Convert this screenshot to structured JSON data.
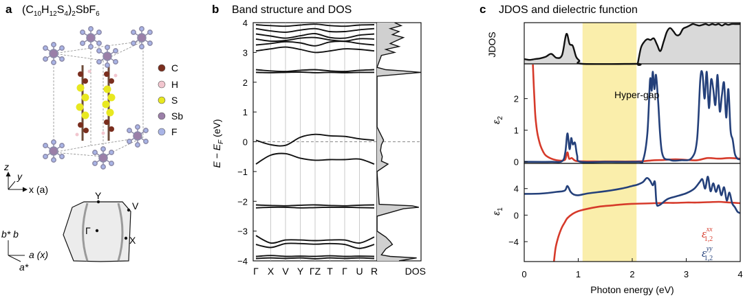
{
  "panel_a": {
    "letter": "a",
    "title": "(C10H12S4)2SbF6",
    "formula_parts": [
      "(C",
      "10",
      "H",
      "12",
      "S",
      "4",
      ")",
      "2",
      "SbF",
      "6"
    ],
    "legend": [
      {
        "label": "C",
        "color": "#7a2e1e"
      },
      {
        "label": "H",
        "color": "#f2c6cf"
      },
      {
        "label": "S",
        "color": "#e8e820"
      },
      {
        "label": "Sb",
        "color": "#9b7fa8"
      },
      {
        "label": "F",
        "color": "#a9b4e6"
      }
    ],
    "axes_top": {
      "z": "z",
      "y": "y",
      "x": "x (a)"
    },
    "axes_bottom": {
      "b": "b* b",
      "a": "a (x)",
      "astar": "a*"
    },
    "bz_points": {
      "Y": "Y",
      "V": "V",
      "Gamma": "Γ",
      "X": "X"
    }
  },
  "panel_b": {
    "letter": "b",
    "title": "Band structure and DOS",
    "ylabel": "E − EF (eV)",
    "ylabel_main": "E − E",
    "ylabel_sub": "F",
    "ylabel_unit": " (eV)",
    "yticks": [
      "4",
      "3",
      "2",
      "1",
      "0",
      "−1",
      "−2",
      "−3",
      "−4"
    ],
    "kpath": [
      "Γ",
      "X",
      "V",
      "Y",
      "ΓZ",
      "T",
      "Γ",
      "U",
      "R"
    ],
    "dos_label": "DOS"
  },
  "panel_c": {
    "letter": "c",
    "title": "JDOS and dielectric function",
    "xlabel": "Photon energy (eV)",
    "xticks": [
      "0",
      "1",
      "2",
      "3",
      "4"
    ],
    "jdos_label": "JDOS",
    "eps2_label": "ε2",
    "eps2_main": "ε",
    "eps2_sub": "2",
    "eps1_label": "ε1",
    "eps1_main": "ε",
    "eps1_sub": "1",
    "eps2_yticks": [
      "2",
      "1",
      "0"
    ],
    "eps1_yticks": [
      "4",
      "0",
      "−4"
    ],
    "annotation": "Hyper-gap",
    "legend": [
      {
        "main": "ε",
        "sup": "xx",
        "sub": "1,2",
        "color": "#d63a2a"
      },
      {
        "main": "ε",
        "sup": "yy",
        "sub": "1,2",
        "color": "#24407a"
      }
    ],
    "colors": {
      "xx": "#d63a2a",
      "yy": "#24407a",
      "hypergap": "#faeeab",
      "jdos_fill": "#d9d9d9"
    }
  },
  "chart_data": [
    {
      "type": "line",
      "panel": "b-band-structure",
      "title": "Band structure and DOS",
      "ylabel": "E − EF (eV)",
      "ylim": [
        -4,
        4
      ],
      "x": [
        "Γ",
        "X",
        "V",
        "Y",
        "ΓZ",
        "T",
        "Γ",
        "U",
        "R"
      ],
      "series": [
        {
          "values": [
            3.93,
            3.9,
            3.88,
            3.92,
            3.95,
            3.9,
            3.88,
            3.92,
            3.93
          ]
        },
        {
          "values": [
            3.8,
            3.72,
            3.68,
            3.75,
            3.8,
            3.7,
            3.7,
            3.76,
            3.8
          ]
        },
        {
          "values": [
            3.62,
            3.55,
            3.48,
            3.56,
            3.63,
            3.5,
            3.48,
            3.58,
            3.62
          ]
        },
        {
          "values": [
            3.45,
            3.38,
            3.4,
            3.48,
            3.5,
            3.42,
            3.38,
            3.46,
            3.45
          ]
        },
        {
          "values": [
            3.25,
            3.3,
            3.36,
            3.32,
            3.22,
            3.35,
            3.37,
            3.3,
            3.25
          ]
        },
        {
          "values": [
            3.05,
            3.12,
            3.18,
            3.1,
            3.0,
            3.05,
            3.12,
            3.1,
            3.05
          ]
        },
        {
          "values": [
            2.42,
            2.38,
            2.36,
            2.4,
            2.42,
            2.38,
            2.36,
            2.4,
            2.42
          ]
        },
        {
          "values": [
            2.33,
            2.32,
            2.33,
            2.34,
            2.32,
            2.33,
            2.32,
            2.33,
            2.33
          ]
        },
        {
          "values": [
            0.05,
            -0.1,
            -0.12,
            0.15,
            0.25,
            0.2,
            0.18,
            0.1,
            0.05
          ]
        },
        {
          "values": [
            -0.75,
            -0.45,
            -0.4,
            -0.55,
            -0.62,
            -0.6,
            -0.6,
            -0.58,
            -0.75
          ]
        },
        {
          "values": [
            -2.12,
            -2.14,
            -2.15,
            -2.13,
            -2.12,
            -2.14,
            -2.15,
            -2.13,
            -2.12
          ]
        },
        {
          "values": [
            -2.22,
            -2.2,
            -2.2,
            -2.22,
            -2.21,
            -2.2,
            -2.2,
            -2.21,
            -2.22
          ]
        },
        {
          "values": [
            -3.15,
            -3.4,
            -3.3,
            -3.3,
            -3.32,
            -3.3,
            -3.3,
            -3.4,
            -3.2
          ]
        },
        {
          "values": [
            -3.45,
            -3.55,
            -3.42,
            -3.42,
            -3.44,
            -3.42,
            -3.45,
            -3.58,
            -3.45
          ]
        },
        {
          "values": [
            -3.85,
            -3.82,
            -3.85,
            -3.84,
            -3.85,
            -3.83,
            -3.85,
            -3.84,
            -3.85
          ]
        },
        {
          "values": [
            -3.92,
            -3.9,
            -3.92,
            -3.9,
            -3.93,
            -3.9,
            -3.92,
            -3.9,
            -3.92
          ]
        }
      ]
    },
    {
      "type": "area",
      "panel": "b-DOS",
      "xlabel": "DOS",
      "ylim": [
        -4,
        4
      ],
      "y": [
        -4,
        -3.9,
        -3.85,
        -3.8,
        -3.6,
        -3.45,
        -3.35,
        -3.2,
        -3.1,
        -3.0,
        -2.5,
        -2.25,
        -2.2,
        -2.15,
        -2.1,
        -1.0,
        -0.75,
        -0.65,
        -0.5,
        -0.3,
        -0.1,
        0.05,
        0.2,
        0.35,
        0.5,
        2.2,
        2.33,
        2.38,
        2.42,
        2.5,
        2.9,
        3.0,
        3.1,
        3.2,
        3.3,
        3.4,
        3.5,
        3.6,
        3.7,
        3.8,
        3.9,
        4.0
      ],
      "values": [
        0.5,
        0.9,
        0.3,
        0.1,
        0.2,
        0.35,
        0.3,
        0.2,
        0.1,
        0.0,
        0.0,
        0.6,
        0.95,
        0.8,
        0.05,
        0.0,
        0.25,
        0.1,
        0.12,
        0.08,
        0.1,
        0.15,
        0.1,
        0.05,
        0.0,
        0.0,
        1.0,
        0.6,
        0.2,
        0.0,
        0.1,
        0.4,
        0.2,
        0.5,
        0.3,
        0.45,
        0.6,
        0.35,
        0.5,
        0.3,
        0.55,
        0.4
      ]
    },
    {
      "type": "area",
      "panel": "c-JDOS",
      "title": "JDOS and dielectric function",
      "ylabel": "JDOS",
      "xlim": [
        0,
        4
      ],
      "annotation": "Hyper-gap",
      "hypergap_range": [
        1.08,
        2.08
      ],
      "x": [
        0.0,
        0.1,
        0.2,
        0.3,
        0.4,
        0.5,
        0.6,
        0.7,
        0.78,
        0.84,
        0.9,
        0.96,
        1.02,
        1.08,
        2.08,
        2.1,
        2.16,
        2.22,
        2.28,
        2.34,
        2.4,
        2.46,
        2.52,
        2.58,
        2.64,
        2.7,
        2.76,
        2.82,
        2.88,
        2.94,
        3.0,
        3.06,
        3.12,
        3.18,
        3.24,
        3.3,
        3.36,
        3.42,
        3.48,
        3.54,
        3.6,
        3.66,
        3.72,
        3.78,
        3.84,
        3.9,
        3.96,
        4.0
      ],
      "values": [
        0.12,
        0.1,
        0.12,
        0.14,
        0.18,
        0.25,
        0.15,
        0.22,
        0.75,
        0.5,
        0.45,
        0.18,
        0.08,
        0.0,
        0.0,
        0.0,
        0.4,
        0.55,
        0.62,
        0.6,
        0.64,
        0.48,
        0.32,
        0.55,
        0.8,
        0.9,
        0.82,
        0.72,
        0.74,
        0.88,
        0.92,
        0.96,
        1.0,
        0.98,
        0.96,
        0.98,
        1.0,
        0.97,
        1.0,
        0.98,
        1.0,
        0.96,
        1.0,
        0.98,
        1.0,
        1.0,
        1.0,
        1.0
      ]
    },
    {
      "type": "line",
      "panel": "c-eps2",
      "ylabel": "ε2",
      "xlim": [
        0,
        4
      ],
      "ylim": [
        -0.05,
        3.1
      ],
      "series": [
        {
          "name": "ε xx 1,2",
          "color": "#d63a2a",
          "x": [
            0.16,
            0.18,
            0.2,
            0.22,
            0.25,
            0.3,
            0.35,
            0.4,
            0.5,
            0.6,
            0.7,
            0.76,
            0.8,
            0.83,
            0.88,
            0.93,
            1.0,
            1.3,
            1.6,
            2.0,
            2.2,
            2.4,
            2.6,
            2.8,
            3.0,
            3.2,
            3.4,
            3.6,
            3.8,
            4.0
          ],
          "values": [
            3.1,
            2.3,
            1.6,
            1.2,
            0.85,
            0.52,
            0.32,
            0.2,
            0.1,
            0.05,
            0.04,
            0.08,
            0.3,
            0.1,
            0.12,
            0.05,
            0.02,
            0.01,
            0.01,
            0.01,
            0.02,
            0.05,
            0.06,
            0.08,
            0.06,
            0.05,
            0.12,
            0.1,
            0.12,
            0.1
          ]
        },
        {
          "name": "ε yy 1,2",
          "color": "#24407a",
          "x": [
            0.0,
            0.5,
            0.7,
            0.76,
            0.8,
            0.84,
            0.87,
            0.9,
            0.94,
            0.98,
            1.04,
            1.5,
            2.1,
            2.2,
            2.28,
            2.33,
            2.36,
            2.38,
            2.41,
            2.44,
            2.48,
            2.55,
            2.7,
            2.9,
            3.1,
            3.2,
            3.26,
            3.3,
            3.34,
            3.38,
            3.42,
            3.46,
            3.5,
            3.54,
            3.58,
            3.62,
            3.66,
            3.7,
            3.74,
            3.78,
            3.82,
            3.86,
            3.9,
            3.95,
            4.0
          ],
          "values": [
            0.0,
            0.0,
            0.02,
            0.3,
            0.9,
            0.4,
            0.75,
            0.55,
            0.6,
            0.2,
            0.0,
            0.0,
            0.0,
            0.05,
            0.9,
            2.6,
            2.25,
            2.85,
            2.3,
            2.75,
            1.9,
            0.3,
            0.06,
            0.05,
            0.12,
            0.7,
            2.6,
            2.8,
            2.0,
            2.85,
            1.7,
            2.6,
            2.3,
            1.8,
            2.75,
            1.6,
            2.1,
            2.5,
            1.4,
            2.3,
            1.0,
            0.7,
            0.25,
            0.1,
            0.08
          ]
        }
      ]
    },
    {
      "type": "line",
      "panel": "c-eps1",
      "xlabel": "Photon energy (eV)",
      "ylabel": "ε1",
      "xlim": [
        0,
        4
      ],
      "ylim": [
        -7,
        7.8
      ],
      "series": [
        {
          "name": "ε xx 1,2",
          "color": "#d63a2a",
          "x": [
            0.55,
            0.58,
            0.62,
            0.66,
            0.7,
            0.75,
            0.8,
            0.9,
            1.0,
            1.2,
            1.4,
            1.6,
            1.8,
            2.0,
            2.2,
            2.4,
            2.6,
            2.8,
            3.0,
            3.2,
            3.4,
            3.6,
            3.8,
            4.0
          ],
          "values": [
            -7.0,
            -5.0,
            -3.6,
            -2.6,
            -1.8,
            -1.1,
            -0.45,
            0.2,
            0.6,
            1.0,
            1.3,
            1.45,
            1.6,
            1.7,
            1.75,
            1.8,
            1.85,
            1.85,
            1.9,
            1.9,
            1.95,
            2.0,
            1.9,
            1.8
          ]
        },
        {
          "name": "ε yy 1,2",
          "color": "#24407a",
          "x": [
            0.0,
            0.3,
            0.6,
            0.75,
            0.8,
            0.86,
            0.92,
            1.0,
            1.2,
            1.5,
            1.8,
            2.0,
            2.1,
            2.2,
            2.27,
            2.33,
            2.38,
            2.42,
            2.45,
            2.5,
            2.65,
            2.8,
            3.0,
            3.15,
            3.25,
            3.3,
            3.35,
            3.4,
            3.45,
            3.5,
            3.55,
            3.6,
            3.65,
            3.7,
            3.75,
            3.8,
            3.85,
            3.9,
            3.95,
            4.0
          ],
          "values": [
            3.2,
            3.25,
            3.5,
            3.7,
            4.4,
            3.5,
            3.1,
            3.0,
            3.3,
            3.6,
            4.0,
            4.4,
            4.6,
            5.0,
            5.6,
            5.2,
            4.5,
            5.0,
            1.8,
            1.5,
            2.4,
            2.8,
            3.3,
            4.0,
            5.0,
            5.4,
            4.0,
            5.8,
            3.6,
            4.8,
            3.5,
            4.5,
            3.0,
            4.2,
            2.2,
            3.4,
            1.8,
            1.2,
            0.5,
            0.3
          ]
        }
      ]
    }
  ]
}
